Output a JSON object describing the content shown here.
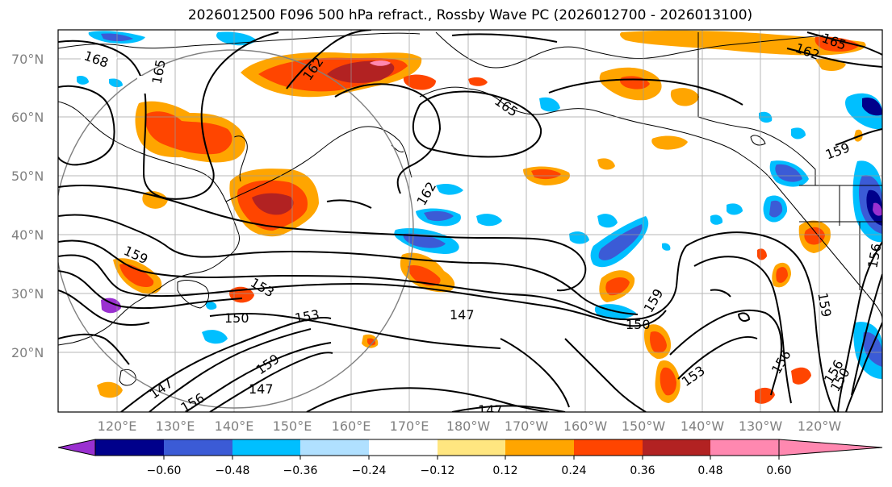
{
  "title": "2026012500 F096 500 hPa refract., Rossby Wave PC (2026012700 - 2026013100)",
  "map": {
    "lat_labels": [
      "70°N",
      "60°N",
      "50°N",
      "40°N",
      "30°N",
      "20°N"
    ],
    "lon_labels": [
      "120°E",
      "130°E",
      "140°E",
      "150°E",
      "160°E",
      "170°E",
      "180°W",
      "170°W",
      "160°W",
      "150°W",
      "140°W",
      "130°W",
      "120°W"
    ],
    "contour_labels": [
      "168",
      "165",
      "162",
      "165",
      "162",
      "162",
      "159",
      "159",
      "153",
      "150",
      "153",
      "147",
      "147",
      "159",
      "147",
      "156",
      "159",
      "150",
      "153",
      "156",
      "156",
      "150",
      "159",
      "156",
      "147",
      "165"
    ]
  },
  "colorbar": {
    "colors": [
      "#9a30d0",
      "#00008b",
      "#3b5bd6",
      "#00bfff",
      "#b0e0ff",
      "#ffffff",
      "#ffe680",
      "#ffa500",
      "#ff4500",
      "#b22222",
      "#ff88b0"
    ],
    "tick_labels": [
      "−0.60",
      "−0.48",
      "−0.36",
      "−0.24",
      "−0.12",
      "0.12",
      "0.24",
      "0.36",
      "0.48",
      "0.60"
    ]
  }
}
